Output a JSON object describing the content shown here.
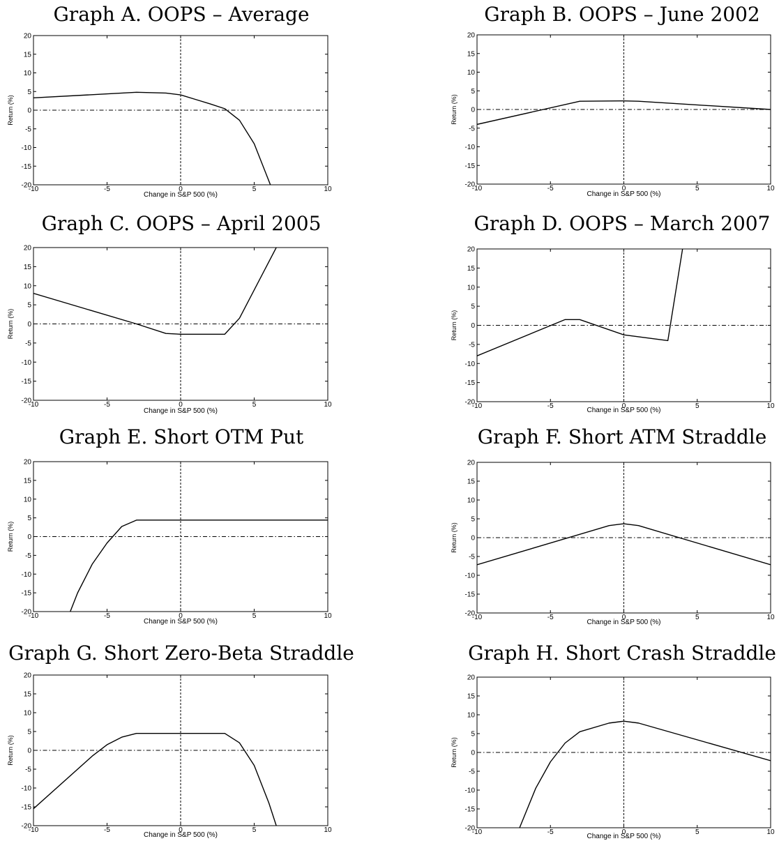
{
  "chart_data": [
    {
      "type": "line",
      "title": "Graph A. OOPS – Average",
      "xlabel": "Change in S&P 500 (%)",
      "ylabel": "Return (%)",
      "xlim": [
        -10,
        10
      ],
      "ylim": [
        -20,
        20
      ],
      "xticks": [
        -10,
        -5,
        0,
        5,
        10
      ],
      "yticks": [
        -20,
        -15,
        -10,
        -5,
        0,
        5,
        10,
        15,
        20
      ],
      "grid": false,
      "series": [
        {
          "x": [
            -10,
            -3,
            -1,
            0,
            1,
            2,
            3,
            4,
            5,
            6.1
          ],
          "y": [
            3.3,
            4.8,
            4.6,
            4.1,
            2.9,
            1.7,
            0.4,
            -2.7,
            -9,
            -20
          ]
        }
      ]
    },
    {
      "type": "line",
      "title": "Graph B. OOPS – June 2002",
      "xlabel": "Change in S&P 500 (%)",
      "ylabel": "Return (%)",
      "xlim": [
        -10,
        10
      ],
      "ylim": [
        -20,
        20
      ],
      "xticks": [
        -10,
        -5,
        0,
        5,
        10
      ],
      "yticks": [
        -20,
        -15,
        -10,
        -5,
        0,
        5,
        10,
        15,
        20
      ],
      "grid": false,
      "series": [
        {
          "x": [
            -10,
            -3,
            0,
            1,
            10
          ],
          "y": [
            -4,
            2.2,
            2.3,
            2.2,
            0
          ]
        }
      ]
    },
    {
      "type": "line",
      "title": "Graph C. OOPS – April 2005",
      "xlabel": "Change in S&P 500 (%)",
      "ylabel": "Return (%)",
      "xlim": [
        -10,
        10
      ],
      "ylim": [
        -20,
        20
      ],
      "xticks": [
        -10,
        -5,
        0,
        5,
        10
      ],
      "yticks": [
        -20,
        -15,
        -10,
        -5,
        0,
        5,
        10,
        15,
        20
      ],
      "grid": false,
      "series": [
        {
          "x": [
            -10,
            -3,
            -1,
            0,
            3,
            4,
            6.5
          ],
          "y": [
            8,
            0,
            -2.5,
            -2.7,
            -2.7,
            1.5,
            20
          ]
        }
      ]
    },
    {
      "type": "line",
      "title": "Graph D. OOPS – March 2007",
      "xlabel": "Change in S&P 500 (%)",
      "ylabel": "Return (%)",
      "xlim": [
        -10,
        10
      ],
      "ylim": [
        -20,
        20
      ],
      "xticks": [
        -10,
        -5,
        0,
        5,
        10
      ],
      "yticks": [
        -20,
        -15,
        -10,
        -5,
        0,
        5,
        10,
        15,
        20
      ],
      "grid": false,
      "series": [
        {
          "x": [
            -10,
            -4,
            -3,
            0,
            3,
            4
          ],
          "y": [
            -8,
            1.5,
            1.5,
            -2.5,
            -4,
            20
          ]
        }
      ]
    },
    {
      "type": "line",
      "title": "Graph E. Short OTM Put",
      "xlabel": "Change in S&P 500 (%)",
      "ylabel": "Return (%)",
      "xlim": [
        -10,
        10
      ],
      "ylim": [
        -20,
        20
      ],
      "xticks": [
        -10,
        -5,
        0,
        5,
        10
      ],
      "yticks": [
        -20,
        -15,
        -10,
        -5,
        0,
        5,
        10,
        15,
        20
      ],
      "grid": false,
      "series": [
        {
          "x": [
            -7.5,
            -7,
            -6,
            -5,
            -4,
            -3,
            10
          ],
          "y": [
            -20,
            -15,
            -7.3,
            -1.7,
            2.7,
            4.4,
            4.4
          ]
        }
      ]
    },
    {
      "type": "line",
      "title": "Graph F. Short ATM Straddle",
      "xlabel": "Change in S&P 500 (%)",
      "ylabel": "Return (%)",
      "xlim": [
        -10,
        10
      ],
      "ylim": [
        -20,
        20
      ],
      "xticks": [
        -10,
        -5,
        0,
        5,
        10
      ],
      "yticks": [
        -20,
        -15,
        -10,
        -5,
        0,
        5,
        10,
        15,
        20
      ],
      "grid": false,
      "series": [
        {
          "x": [
            -10,
            -1,
            0,
            1,
            10
          ],
          "y": [
            -7.2,
            3.2,
            3.7,
            3.2,
            -7.2
          ]
        }
      ]
    },
    {
      "type": "line",
      "title": "Graph G. Short Zero-Beta Straddle",
      "xlabel": "Change in S&P 500 (%)",
      "ylabel": "Return (%)",
      "xlim": [
        -10,
        10
      ],
      "ylim": [
        -20,
        20
      ],
      "xticks": [
        -10,
        -5,
        0,
        5,
        10
      ],
      "yticks": [
        -20,
        -15,
        -10,
        -5,
        0,
        5,
        10,
        15,
        20
      ],
      "grid": false,
      "series": [
        {
          "x": [
            -10,
            -6,
            -5,
            -4,
            -3,
            3,
            4,
            5,
            6,
            6.5
          ],
          "y": [
            -15.5,
            -1.5,
            1.5,
            3.5,
            4.5,
            4.5,
            2,
            -4,
            -14,
            -20
          ]
        }
      ]
    },
    {
      "type": "line",
      "title": "Graph H. Short Crash Straddle",
      "xlabel": "Change in S&P 500 (%)",
      "ylabel": "Return (%)",
      "xlim": [
        -10,
        10
      ],
      "ylim": [
        -20,
        20
      ],
      "xticks": [
        -10,
        -5,
        0,
        5,
        10
      ],
      "yticks": [
        -20,
        -15,
        -10,
        -5,
        0,
        5,
        10,
        15,
        20
      ],
      "grid": false,
      "series": [
        {
          "x": [
            -7.1,
            -6,
            -5,
            -4,
            -3,
            -1,
            0,
            1,
            10
          ],
          "y": [
            -20,
            -9.5,
            -2.5,
            2.5,
            5.5,
            7.8,
            8.3,
            7.8,
            -2.2
          ]
        }
      ]
    }
  ]
}
